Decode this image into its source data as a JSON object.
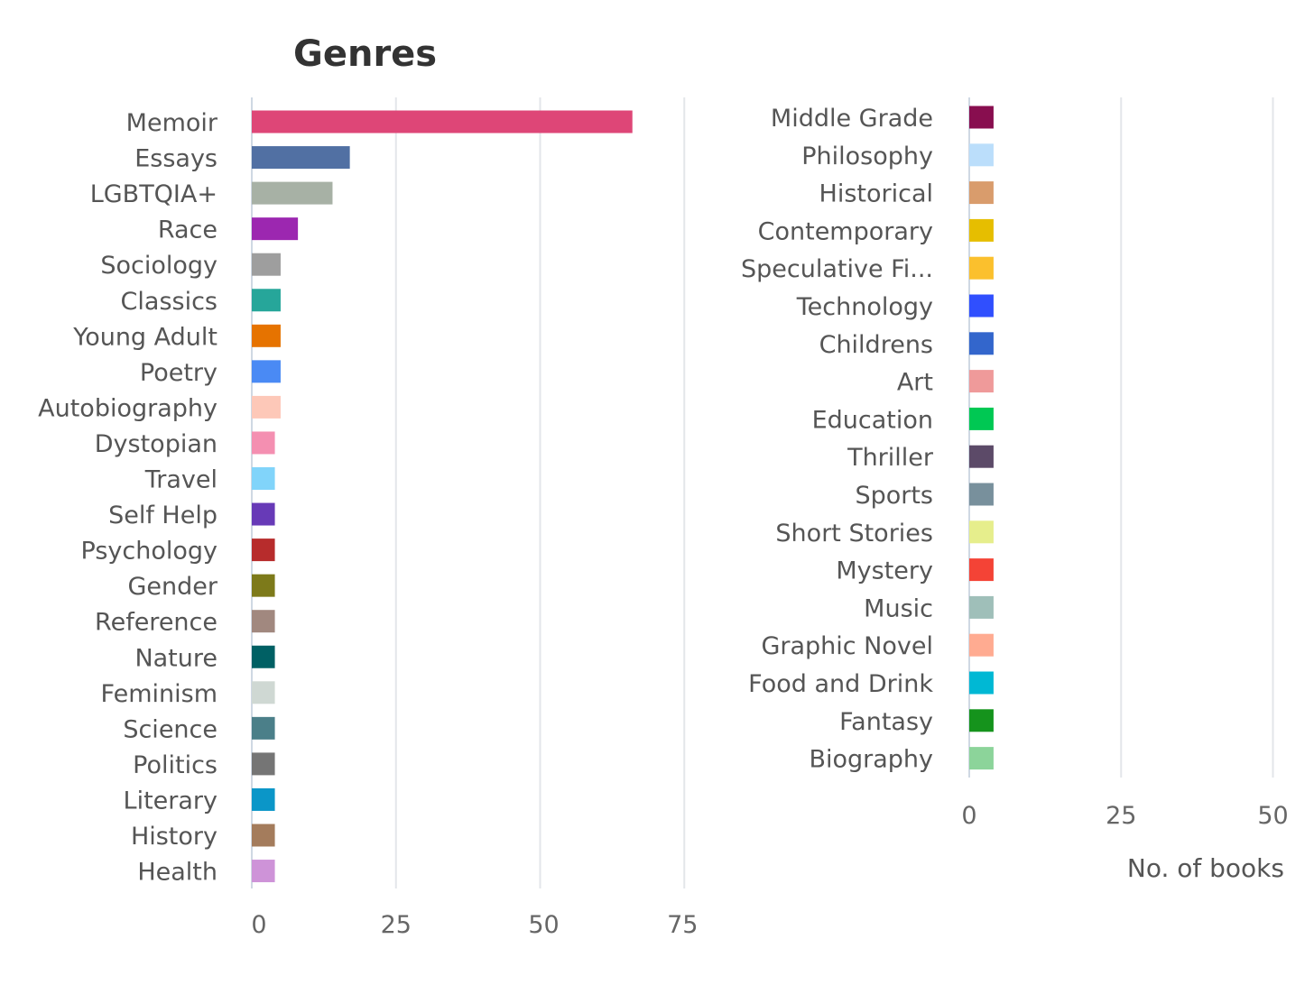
{
  "chart_data": [
    {
      "type": "bar",
      "orientation": "horizontal",
      "title": "Genres",
      "xlabel": "",
      "ylabel": "",
      "xlim": [
        0,
        75
      ],
      "xticks": [
        "0",
        "25",
        "50",
        "75"
      ],
      "grid": true,
      "categories": [
        "Memoir",
        "Essays",
        "LGBTQIA+",
        "Race",
        "Sociology",
        "Classics",
        "Young Adult",
        "Poetry",
        "Autobiography",
        "Dystopian",
        "Travel",
        "Self Help",
        "Psychology",
        "Gender",
        "Reference",
        "Nature",
        "Feminism",
        "Science",
        "Politics",
        "Literary",
        "History",
        "Health"
      ],
      "values": [
        66,
        17,
        14,
        8,
        5,
        5,
        5,
        5,
        5,
        4,
        4,
        4,
        4,
        4,
        4,
        4,
        4,
        4,
        4,
        4,
        4,
        4
      ],
      "colors": [
        "#de4677",
        "#5170a3",
        "#a7b1a5",
        "#9c27b0",
        "#9e9e9e",
        "#26a69a",
        "#e67300",
        "#4a8af4",
        "#fdc8b8",
        "#f48fb1",
        "#81d4fa",
        "#673ab7",
        "#b72c2c",
        "#7d7a1a",
        "#a1887f",
        "#006064",
        "#cfd8d3",
        "#4b7f89",
        "#757575",
        "#0b96c8",
        "#a47c5c",
        "#ce93d8"
      ]
    },
    {
      "type": "bar",
      "orientation": "horizontal",
      "title": "",
      "xlabel": "No. of books",
      "ylabel": "",
      "xlim": [
        0,
        50
      ],
      "xticks": [
        "0",
        "25",
        "50"
      ],
      "grid": true,
      "categories": [
        "Middle Grade",
        "Philosophy",
        "Historical",
        "Contemporary",
        "Speculative Fi...",
        "Technology",
        "Childrens",
        "Art",
        "Education",
        "Thriller",
        "Sports",
        "Short Stories",
        "Mystery",
        "Music",
        "Graphic Novel",
        "Food and Drink",
        "Fantasy",
        "Biography"
      ],
      "values": [
        4,
        4,
        4,
        4,
        4,
        4,
        4,
        4,
        4,
        4,
        4,
        4,
        4,
        4,
        4,
        4,
        4,
        4
      ],
      "colors": [
        "#880e4f",
        "#bbdefb",
        "#d99c6c",
        "#e6be00",
        "#fbc02d",
        "#304ffe",
        "#3366cc",
        "#ef9a9a",
        "#00c853",
        "#5c4a68",
        "#78909c",
        "#e6ee8c",
        "#f44336",
        "#9fbfb9",
        "#ffab91",
        "#00b8d4",
        "#15931c",
        "#8cd49a"
      ]
    }
  ]
}
